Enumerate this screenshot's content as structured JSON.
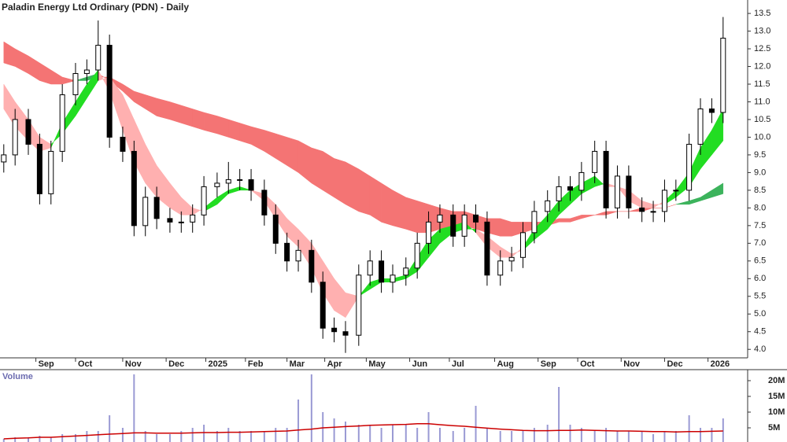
{
  "chart_data": {
    "type": "candlestick",
    "title": "Paladin Energy Ltd Ordinary (PDN) - Daily",
    "x": [
      2,
      8,
      15,
      21,
      27,
      33,
      40,
      46,
      52,
      58,
      65,
      71,
      77,
      83,
      90,
      96,
      102,
      108,
      115,
      121,
      127,
      133,
      140,
      146,
      152,
      158,
      165,
      171,
      177,
      183,
      190,
      196,
      202,
      208,
      215,
      221,
      227,
      233,
      240,
      246,
      252,
      258,
      265,
      271,
      277,
      283,
      290,
      296,
      302,
      308,
      315,
      321,
      327,
      333,
      340,
      346,
      352,
      358,
      365,
      371,
      377,
      383
    ],
    "open": [
      9.3,
      9.5,
      10.5,
      9.8,
      8.4,
      9.6,
      11.2,
      11.8,
      11.9,
      12.6,
      10.0,
      9.6,
      7.5,
      8.3,
      7.7,
      7.6,
      7.6,
      7.8,
      8.6,
      8.7,
      8.8,
      8.8,
      8.5,
      7.8,
      7.0,
      6.5,
      6.8,
      5.9,
      4.6,
      4.5,
      4.4,
      6.1,
      6.5,
      5.9,
      6.1,
      6.3,
      7.0,
      7.6,
      7.8,
      7.2,
      7.8,
      7.6,
      6.1,
      6.5,
      6.6,
      7.3,
      7.9,
      8.2,
      8.6,
      8.5,
      9.0,
      9.6,
      8.0,
      8.9,
      8.0,
      7.9,
      7.9,
      8.5,
      8.5,
      9.8,
      10.8,
      10.7
    ],
    "high": [
      9.8,
      10.8,
      10.8,
      10.1,
      9.9,
      11.5,
      12.1,
      12.2,
      13.3,
      12.9,
      10.3,
      9.9,
      8.6,
      8.6,
      8.0,
      7.9,
      8.1,
      8.9,
      9.0,
      9.3,
      9.1,
      9.1,
      8.8,
      8.1,
      7.3,
      7.1,
      7.1,
      6.2,
      4.9,
      4.8,
      6.4,
      6.8,
      6.8,
      6.4,
      6.6,
      7.3,
      7.9,
      8.1,
      8.1,
      8.1,
      8.1,
      7.9,
      6.8,
      6.9,
      7.6,
      8.2,
      8.5,
      8.9,
      8.9,
      9.3,
      9.9,
      9.9,
      9.2,
      9.2,
      8.3,
      8.2,
      8.8,
      8.8,
      10.1,
      11.1,
      11.1,
      13.4
    ],
    "low": [
      9.0,
      9.2,
      9.5,
      8.1,
      8.1,
      9.3,
      10.9,
      11.5,
      11.6,
      9.7,
      9.3,
      7.2,
      7.2,
      7.4,
      7.3,
      7.3,
      7.3,
      7.5,
      8.3,
      8.4,
      8.5,
      8.2,
      7.5,
      6.7,
      6.2,
      6.2,
      5.6,
      4.3,
      4.2,
      3.9,
      4.1,
      5.8,
      5.6,
      5.6,
      5.8,
      6.0,
      6.7,
      7.3,
      6.9,
      6.9,
      7.3,
      5.8,
      5.8,
      6.2,
      6.3,
      7.0,
      7.6,
      7.9,
      8.2,
      8.2,
      8.7,
      7.7,
      7.7,
      7.7,
      7.6,
      7.6,
      7.6,
      8.2,
      8.2,
      9.5,
      10.4,
      10.4
    ],
    "close": [
      9.5,
      10.5,
      9.8,
      8.4,
      9.6,
      11.2,
      11.8,
      11.9,
      12.6,
      10.0,
      9.6,
      7.5,
      8.3,
      7.7,
      7.6,
      7.6,
      7.8,
      8.6,
      8.7,
      8.8,
      8.8,
      8.5,
      7.8,
      7.0,
      6.5,
      6.8,
      5.9,
      4.6,
      4.5,
      4.4,
      6.1,
      6.5,
      5.9,
      6.1,
      6.3,
      7.0,
      7.6,
      7.8,
      7.2,
      7.8,
      7.6,
      6.1,
      6.5,
      6.6,
      7.3,
      7.9,
      8.2,
      8.6,
      8.5,
      9.0,
      9.6,
      8.0,
      8.9,
      8.0,
      7.9,
      7.9,
      8.5,
      8.5,
      9.8,
      10.8,
      10.7,
      12.8
    ],
    "ribbons": [
      {
        "up_color": "#3cb35c",
        "down_color": "#f47474",
        "fast": [
          12.1,
          12.0,
          11.8,
          11.6,
          11.5,
          11.5,
          11.6,
          11.7,
          11.8,
          11.6,
          11.3,
          11.0,
          10.8,
          10.6,
          10.5,
          10.4,
          10.3,
          10.2,
          10.1,
          10.0,
          9.9,
          9.8,
          9.6,
          9.4,
          9.2,
          9.0,
          8.7,
          8.5,
          8.3,
          8.1,
          7.9,
          7.8,
          7.6,
          7.5,
          7.4,
          7.3,
          7.3,
          7.4,
          7.4,
          7.5,
          7.4,
          7.3,
          7.2,
          7.2,
          7.3,
          7.4,
          7.5,
          7.6,
          7.6,
          7.7,
          7.8,
          7.8,
          7.9,
          7.9,
          7.9,
          8.0,
          8.0,
          8.1,
          8.2,
          8.3,
          8.5,
          8.7
        ],
        "slow": [
          12.7,
          12.5,
          12.3,
          12.1,
          11.9,
          11.7,
          11.6,
          11.6,
          11.7,
          11.7,
          11.5,
          11.3,
          11.2,
          11.1,
          11.0,
          10.9,
          10.8,
          10.7,
          10.6,
          10.5,
          10.4,
          10.3,
          10.2,
          10.1,
          10.0,
          9.9,
          9.7,
          9.6,
          9.4,
          9.3,
          9.1,
          8.9,
          8.7,
          8.5,
          8.3,
          8.2,
          8.1,
          8.0,
          7.9,
          7.9,
          7.8,
          7.7,
          7.7,
          7.6,
          7.6,
          7.6,
          7.6,
          7.7,
          7.7,
          7.8,
          7.8,
          7.9,
          7.9,
          7.9,
          8.0,
          8.0,
          8.0,
          8.1,
          8.1,
          8.2,
          8.3,
          8.4
        ]
      },
      {
        "up_color": "#22dd22",
        "down_color": "#ffb0b0",
        "fast": [
          10.8,
          10.3,
          9.9,
          9.6,
          9.7,
          10.4,
          11.0,
          11.5,
          11.9,
          11.3,
          10.2,
          9.3,
          8.7,
          8.3,
          8.0,
          7.8,
          7.8,
          8.0,
          8.3,
          8.5,
          8.6,
          8.5,
          8.2,
          7.7,
          7.2,
          6.9,
          6.3,
          5.6,
          5.1,
          4.9,
          5.5,
          5.9,
          6.0,
          6.0,
          6.1,
          6.6,
          7.1,
          7.4,
          7.5,
          7.6,
          7.3,
          6.9,
          6.6,
          6.6,
          6.9,
          7.4,
          7.8,
          8.2,
          8.5,
          8.7,
          8.9,
          8.6,
          8.6,
          8.2,
          8.0,
          8.0,
          8.2,
          8.5,
          9.0,
          9.7,
          10.2,
          10.8
        ],
        "slow": [
          11.5,
          11.0,
          10.5,
          10.0,
          9.8,
          10.1,
          10.6,
          11.1,
          11.6,
          11.7,
          11.2,
          10.5,
          9.8,
          9.2,
          8.7,
          8.3,
          8.0,
          7.9,
          8.1,
          8.4,
          8.5,
          8.5,
          8.4,
          8.1,
          7.7,
          7.4,
          7.0,
          6.5,
          6.0,
          5.6,
          5.5,
          5.7,
          5.9,
          5.9,
          6.0,
          6.2,
          6.6,
          7.0,
          7.3,
          7.4,
          7.4,
          7.2,
          6.9,
          6.7,
          6.8,
          7.1,
          7.4,
          7.8,
          8.1,
          8.4,
          8.6,
          8.7,
          8.6,
          8.5,
          8.2,
          8.1,
          8.1,
          8.3,
          8.6,
          9.1,
          9.5,
          9.9
        ]
      }
    ],
    "xlim": [
      0,
      396
    ],
    "xticks": [
      {
        "value": 19,
        "label": "Sep"
      },
      {
        "value": 40,
        "label": "Oct"
      },
      {
        "value": 65,
        "label": "Nov"
      },
      {
        "value": 88,
        "label": "Dec"
      },
      {
        "value": 109,
        "label": "2025"
      },
      {
        "value": 130,
        "label": "Feb"
      },
      {
        "value": 152,
        "label": "Mar"
      },
      {
        "value": 172,
        "label": "Apr"
      },
      {
        "value": 194,
        "label": "May"
      },
      {
        "value": 217,
        "label": "Jun"
      },
      {
        "value": 238,
        "label": "Jul"
      },
      {
        "value": 262,
        "label": "Aug"
      },
      {
        "value": 285,
        "label": "Sep"
      },
      {
        "value": 306,
        "label": "Oct"
      },
      {
        "value": 329,
        "label": "Nov"
      },
      {
        "value": 352,
        "label": "Dec"
      },
      {
        "value": 375,
        "label": "2026"
      }
    ],
    "ylim": [
      3.76,
      13.88
    ],
    "yticks": [
      {
        "value": 4,
        "label": "4.0"
      },
      4.5,
      {
        "value": 5,
        "label": "5.0"
      },
      5.5,
      {
        "value": 6,
        "label": "6.0"
      },
      6.5,
      {
        "value": 7,
        "label": "7.0"
      },
      7.5,
      {
        "value": 8,
        "label": "8.0"
      },
      8.5,
      {
        "value": 9,
        "label": "9.0"
      },
      9.5,
      {
        "value": 10,
        "label": "10.0"
      },
      10.5,
      {
        "value": 11,
        "label": "11.0"
      },
      11.5,
      {
        "value": 12,
        "label": "12.0"
      },
      12.5,
      {
        "value": 13,
        "label": "13.0"
      },
      13.5
    ],
    "volume": {
      "title": "Volume",
      "color": "#9a9ad4",
      "ma_color": "#cc0000",
      "values": [
        1500000,
        2000000,
        2000000,
        2500000,
        2000000,
        3000000,
        3000000,
        4000000,
        4000000,
        9000000,
        5000000,
        22000000,
        4000000,
        3000000,
        3000000,
        4000000,
        5000000,
        6000000,
        4000000,
        5000000,
        4000000,
        4000000,
        4000000,
        5000000,
        5000000,
        14000000,
        22000000,
        10000000,
        8000000,
        7000000,
        6000000,
        6000000,
        5000000,
        6000000,
        6000000,
        5000000,
        10000000,
        5000000,
        4000000,
        5000000,
        12000000,
        5000000,
        4000000,
        4000000,
        4000000,
        5000000,
        6000000,
        18000000,
        6000000,
        5000000,
        4000000,
        5000000,
        4000000,
        4000000,
        4000000,
        3000000,
        4000000,
        4000000,
        9000000,
        5000000,
        5000000,
        8000000
      ],
      "ma": [
        1500000,
        1700000,
        1800000,
        2000000,
        2000000,
        2200000,
        2400000,
        2600000,
        2800000,
        3000000,
        3200000,
        3400000,
        3400000,
        3300000,
        3300000,
        3300000,
        3400000,
        3500000,
        3500000,
        3600000,
        3600000,
        3700000,
        3800000,
        3900000,
        4000000,
        4300000,
        4600000,
        5000000,
        5200000,
        5400000,
        5600000,
        5800000,
        5900000,
        6000000,
        6100000,
        6300000,
        6300000,
        6000000,
        5700000,
        5500000,
        5200000,
        4900000,
        4600000,
        4400000,
        4200000,
        4100000,
        4100000,
        4200000,
        4200000,
        4300000,
        4200000,
        4100000,
        4000000,
        4000000,
        3900000,
        3800000,
        3800000,
        3700000,
        3800000,
        3800000,
        3900000,
        4000000
      ],
      "ylim": [
        500000,
        23500000
      ],
      "yticks": [
        {
          "value": 5000000,
          "label": "5M"
        },
        {
          "value": 10000000,
          "label": "10M"
        },
        {
          "value": 15000000,
          "label": "15M"
        },
        {
          "value": 20000000,
          "label": "20M"
        }
      ]
    }
  }
}
